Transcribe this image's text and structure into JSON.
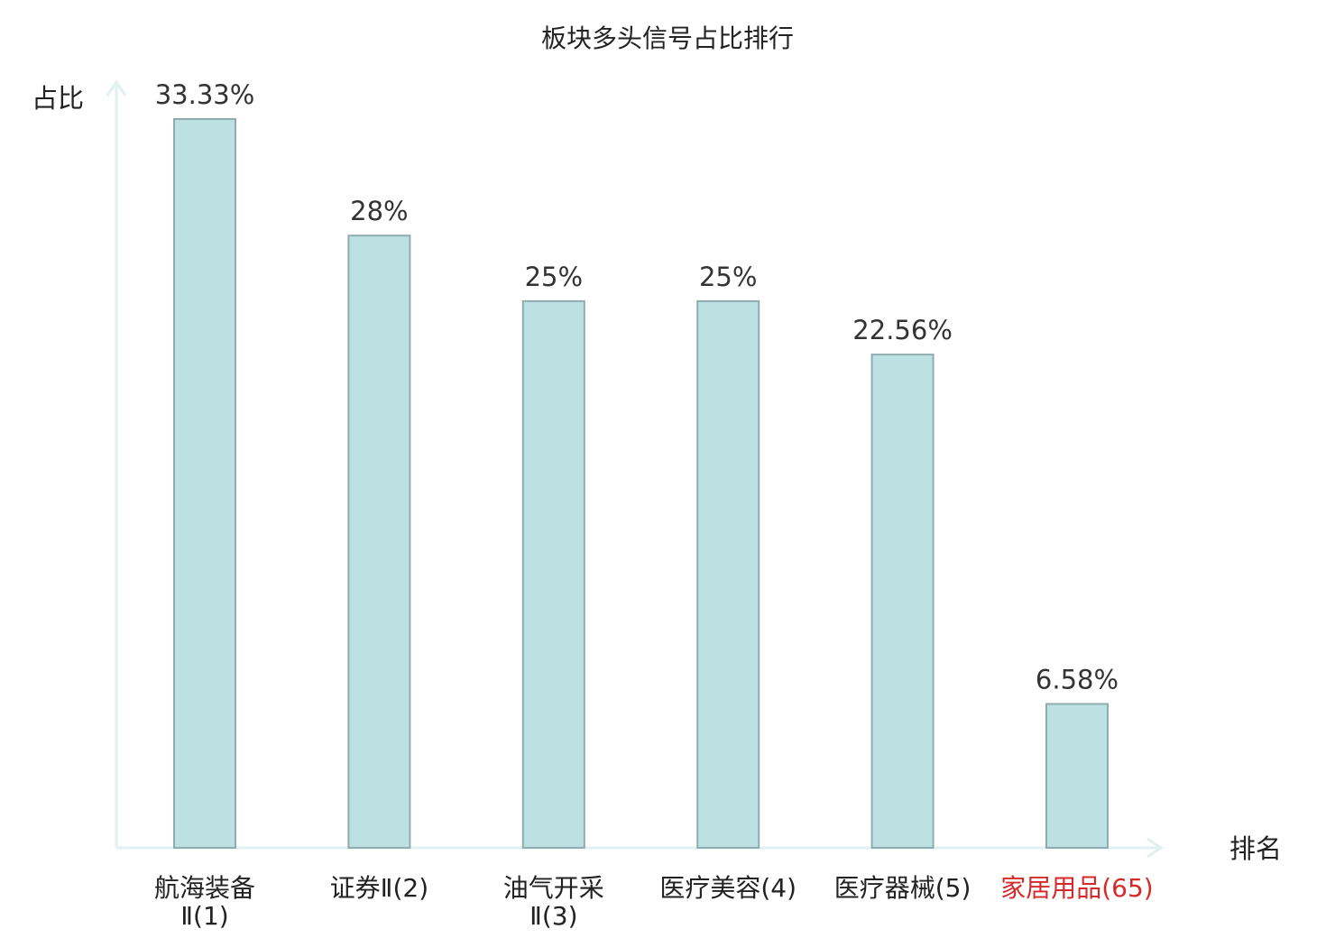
{
  "chart_data": {
    "type": "bar",
    "title": "板块多头信号占比排行",
    "xlabel": "排名",
    "ylabel": "占比",
    "ylim": [
      0,
      35
    ],
    "grid": false,
    "categories": [
      {
        "name": "航海装备Ⅱ",
        "rank": "(1)",
        "lines": [
          "航海装备",
          "Ⅱ(1)"
        ],
        "highlight": false
      },
      {
        "name": "证券Ⅱ",
        "rank": "(2)",
        "lines": [
          "证券Ⅱ(2)"
        ],
        "highlight": false
      },
      {
        "name": "油气开采Ⅱ",
        "rank": "(3)",
        "lines": [
          "油气开采",
          "Ⅱ(3)"
        ],
        "highlight": false
      },
      {
        "name": "医疗美容",
        "rank": "(4)",
        "lines": [
          "医疗美容(4)"
        ],
        "highlight": false
      },
      {
        "name": "医疗器械",
        "rank": "(5)",
        "lines": [
          "医疗器械(5)"
        ],
        "highlight": false
      },
      {
        "name": "家居用品",
        "rank": "(65)",
        "lines": [
          "家居用品(65)"
        ],
        "highlight": true
      }
    ],
    "values": [
      33.33,
      28,
      25,
      25,
      22.56,
      6.58
    ],
    "value_labels": [
      "33.33%",
      "28%",
      "25%",
      "25%",
      "22.56%",
      "6.58%"
    ],
    "colors": {
      "bar_fill": "#bde0e3",
      "bar_stroke": "#8fadae",
      "axis": "#dff2ef",
      "highlight": "#d42a2a"
    }
  }
}
